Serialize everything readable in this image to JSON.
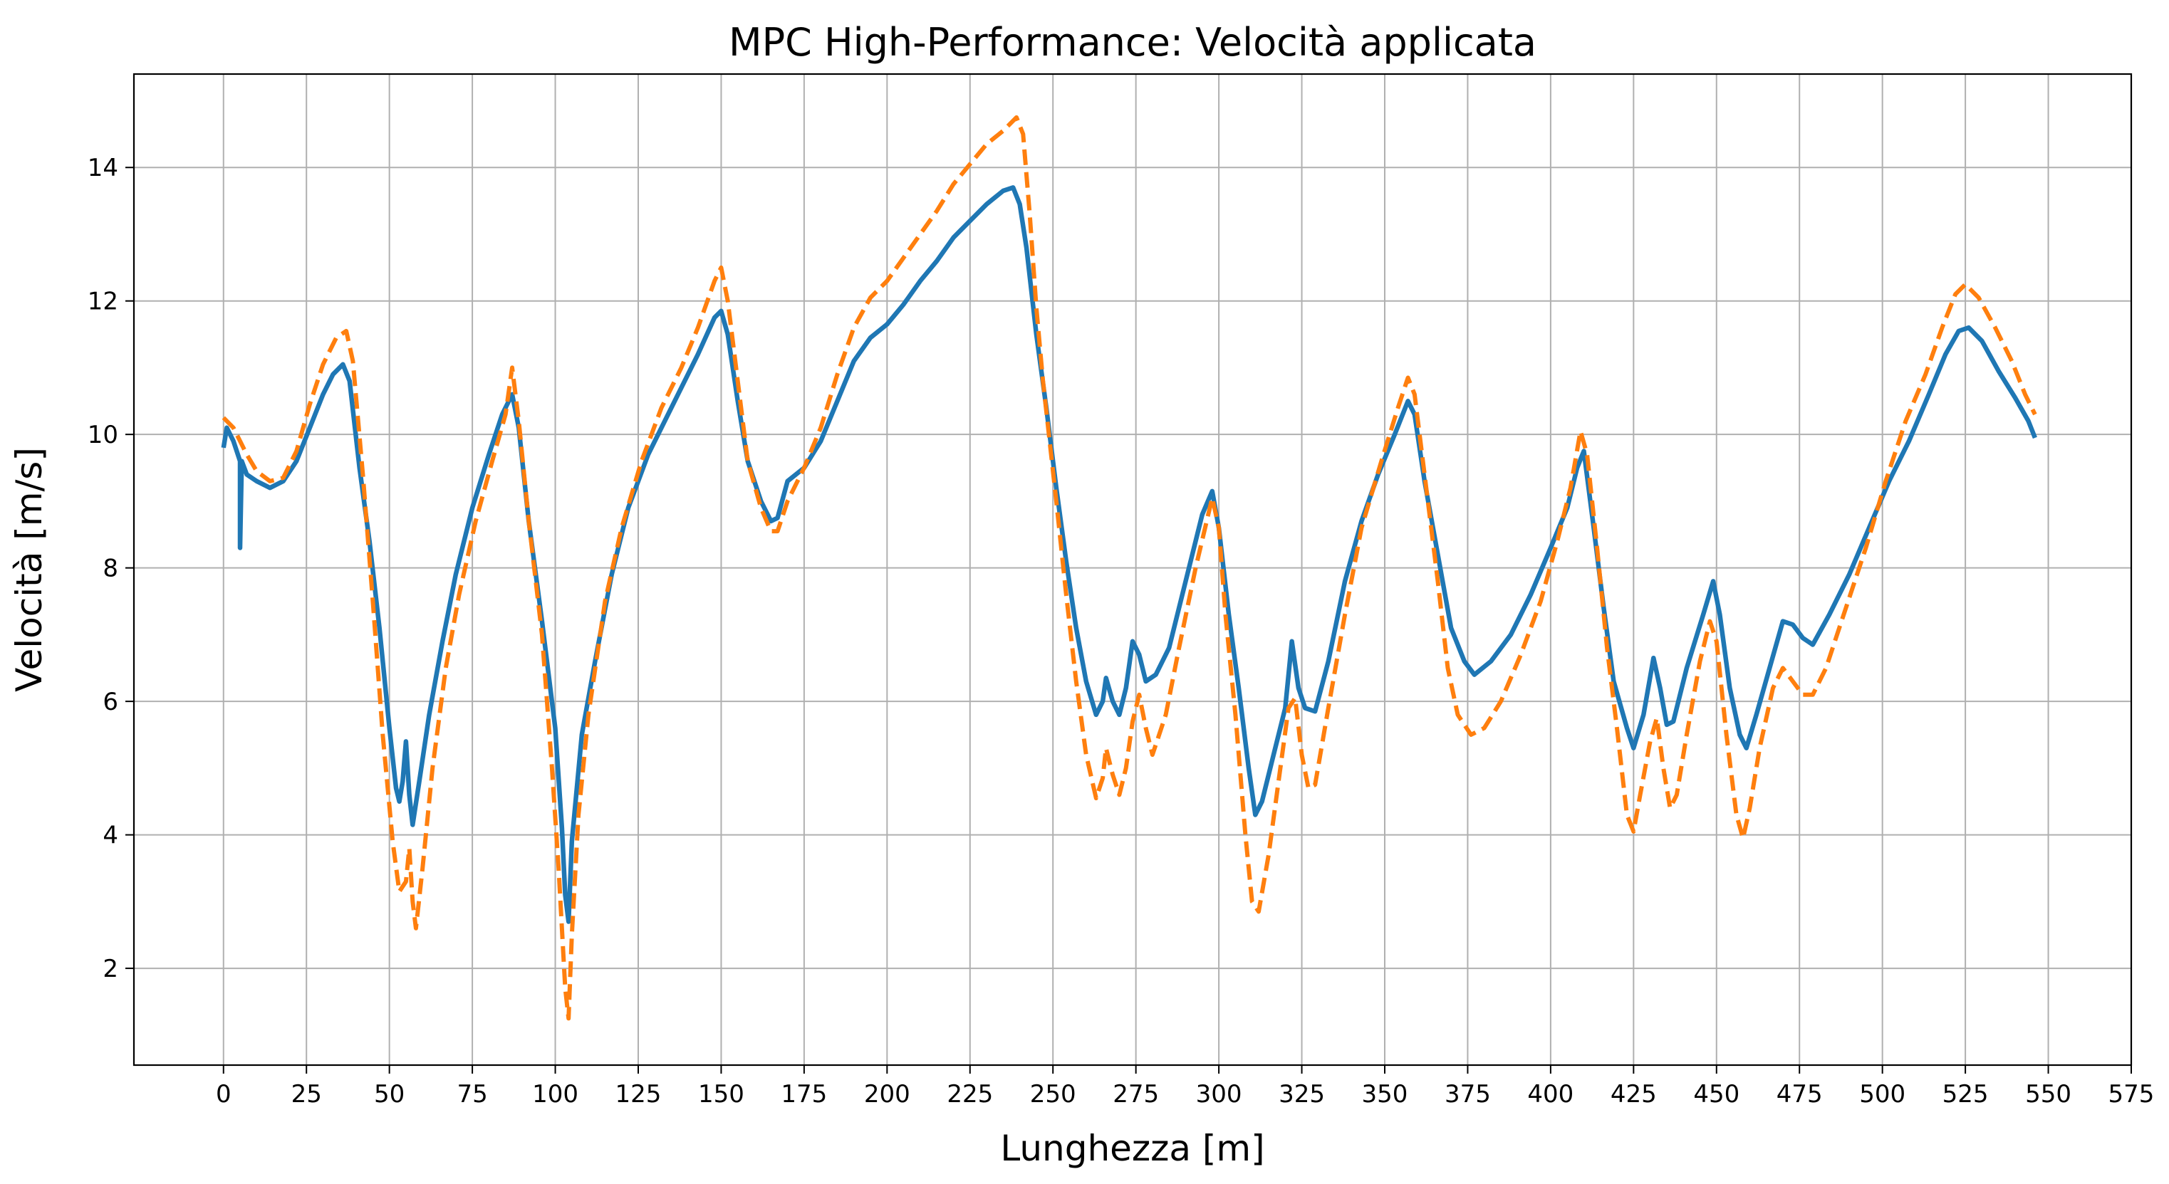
{
  "chart_data": {
    "type": "line",
    "title": "MPC High-Performance: Velocità applicata",
    "xlabel": "Lunghezza [m]",
    "ylabel": "Velocità [m/s]",
    "xlim": [
      -27,
      575
    ],
    "ylim": [
      0.55,
      15.4
    ],
    "xticks": [
      0,
      25,
      50,
      75,
      100,
      125,
      150,
      175,
      200,
      225,
      250,
      275,
      300,
      325,
      350,
      375,
      400,
      425,
      450,
      475,
      500,
      525,
      550,
      575
    ],
    "yticks": [
      2,
      4,
      6,
      8,
      10,
      12,
      14
    ],
    "grid": true,
    "series": [
      {
        "color": "#1f77b4",
        "style": "solid",
        "points": [
          [
            0,
            9.8
          ],
          [
            1,
            10.1
          ],
          [
            3,
            9.9
          ],
          [
            5,
            9.6
          ],
          [
            5,
            8.3
          ],
          [
            5.5,
            9.6
          ],
          [
            7,
            9.4
          ],
          [
            10,
            9.3
          ],
          [
            14,
            9.2
          ],
          [
            18,
            9.3
          ],
          [
            22,
            9.6
          ],
          [
            26,
            10.1
          ],
          [
            30,
            10.6
          ],
          [
            33,
            10.9
          ],
          [
            36,
            11.05
          ],
          [
            38,
            10.8
          ],
          [
            41,
            9.5
          ],
          [
            44,
            8.4
          ],
          [
            47,
            7.1
          ],
          [
            50,
            5.6
          ],
          [
            52,
            4.7
          ],
          [
            53,
            4.5
          ],
          [
            54,
            4.8
          ],
          [
            55,
            5.4
          ],
          [
            56,
            4.6
          ],
          [
            57,
            4.15
          ],
          [
            59,
            4.8
          ],
          [
            62,
            5.8
          ],
          [
            66,
            6.9
          ],
          [
            70,
            7.9
          ],
          [
            75,
            8.9
          ],
          [
            80,
            9.7
          ],
          [
            84,
            10.3
          ],
          [
            87,
            10.6
          ],
          [
            89,
            10.1
          ],
          [
            92,
            8.7
          ],
          [
            96,
            7.2
          ],
          [
            100,
            5.6
          ],
          [
            102,
            4.1
          ],
          [
            103,
            3.1
          ],
          [
            104,
            2.7
          ],
          [
            105,
            3.9
          ],
          [
            108,
            5.5
          ],
          [
            112,
            6.6
          ],
          [
            117,
            7.9
          ],
          [
            122,
            8.9
          ],
          [
            128,
            9.7
          ],
          [
            133,
            10.2
          ],
          [
            138,
            10.7
          ],
          [
            143,
            11.2
          ],
          [
            148,
            11.75
          ],
          [
            150,
            11.85
          ],
          [
            152,
            11.5
          ],
          [
            155,
            10.5
          ],
          [
            158,
            9.6
          ],
          [
            162,
            9.0
          ],
          [
            165,
            8.7
          ],
          [
            167,
            8.75
          ],
          [
            170,
            9.3
          ],
          [
            175,
            9.5
          ],
          [
            180,
            9.9
          ],
          [
            185,
            10.5
          ],
          [
            190,
            11.1
          ],
          [
            195,
            11.45
          ],
          [
            200,
            11.65
          ],
          [
            205,
            11.95
          ],
          [
            210,
            12.3
          ],
          [
            215,
            12.6
          ],
          [
            220,
            12.95
          ],
          [
            225,
            13.2
          ],
          [
            230,
            13.45
          ],
          [
            235,
            13.65
          ],
          [
            238,
            13.7
          ],
          [
            240,
            13.45
          ],
          [
            242,
            12.8
          ],
          [
            245,
            11.5
          ],
          [
            248,
            10.4
          ],
          [
            251,
            9.2
          ],
          [
            254,
            8.1
          ],
          [
            257,
            7.1
          ],
          [
            260,
            6.3
          ],
          [
            263,
            5.8
          ],
          [
            265,
            6.0
          ],
          [
            266,
            6.35
          ],
          [
            268,
            6.0
          ],
          [
            270,
            5.8
          ],
          [
            272,
            6.2
          ],
          [
            274,
            6.9
          ],
          [
            276,
            6.7
          ],
          [
            278,
            6.3
          ],
          [
            281,
            6.4
          ],
          [
            285,
            6.8
          ],
          [
            290,
            7.8
          ],
          [
            295,
            8.8
          ],
          [
            298,
            9.15
          ],
          [
            300,
            8.6
          ],
          [
            303,
            7.3
          ],
          [
            306,
            6.2
          ],
          [
            309,
            5.0
          ],
          [
            311,
            4.3
          ],
          [
            313,
            4.5
          ],
          [
            316,
            5.1
          ],
          [
            320,
            5.9
          ],
          [
            322,
            6.9
          ],
          [
            324,
            6.2
          ],
          [
            326,
            5.9
          ],
          [
            329,
            5.85
          ],
          [
            333,
            6.6
          ],
          [
            338,
            7.8
          ],
          [
            343,
            8.7
          ],
          [
            348,
            9.4
          ],
          [
            353,
            10.0
          ],
          [
            357,
            10.5
          ],
          [
            359,
            10.3
          ],
          [
            362,
            9.3
          ],
          [
            366,
            8.2
          ],
          [
            370,
            7.1
          ],
          [
            374,
            6.6
          ],
          [
            377,
            6.4
          ],
          [
            382,
            6.6
          ],
          [
            388,
            7.0
          ],
          [
            394,
            7.6
          ],
          [
            400,
            8.3
          ],
          [
            405,
            8.9
          ],
          [
            408,
            9.5
          ],
          [
            410,
            9.75
          ],
          [
            413,
            8.6
          ],
          [
            416,
            7.4
          ],
          [
            419,
            6.3
          ],
          [
            423,
            5.6
          ],
          [
            425,
            5.3
          ],
          [
            428,
            5.8
          ],
          [
            431,
            6.65
          ],
          [
            433,
            6.2
          ],
          [
            435,
            5.65
          ],
          [
            437,
            5.7
          ],
          [
            441,
            6.5
          ],
          [
            446,
            7.3
          ],
          [
            449,
            7.8
          ],
          [
            451,
            7.3
          ],
          [
            454,
            6.2
          ],
          [
            457,
            5.5
          ],
          [
            459,
            5.3
          ],
          [
            462,
            5.8
          ],
          [
            466,
            6.5
          ],
          [
            470,
            7.2
          ],
          [
            473,
            7.15
          ],
          [
            476,
            6.95
          ],
          [
            479,
            6.85
          ],
          [
            484,
            7.3
          ],
          [
            490,
            7.9
          ],
          [
            496,
            8.6
          ],
          [
            502,
            9.3
          ],
          [
            508,
            9.9
          ],
          [
            514,
            10.6
          ],
          [
            519,
            11.2
          ],
          [
            523,
            11.55
          ],
          [
            526,
            11.6
          ],
          [
            530,
            11.4
          ],
          [
            535,
            10.95
          ],
          [
            540,
            10.55
          ],
          [
            544,
            10.2
          ],
          [
            546,
            9.95
          ]
        ]
      },
      {
        "color": "#ff7f0e",
        "style": "dashed",
        "points": [
          [
            0,
            10.25
          ],
          [
            3,
            10.1
          ],
          [
            7,
            9.7
          ],
          [
            10,
            9.45
          ],
          [
            14,
            9.3
          ],
          [
            18,
            9.35
          ],
          [
            22,
            9.75
          ],
          [
            26,
            10.45
          ],
          [
            30,
            11.05
          ],
          [
            34,
            11.45
          ],
          [
            37,
            11.55
          ],
          [
            39,
            11.1
          ],
          [
            42,
            9.4
          ],
          [
            45,
            7.5
          ],
          [
            48,
            5.5
          ],
          [
            51,
            3.9
          ],
          [
            53,
            3.15
          ],
          [
            55,
            3.3
          ],
          [
            56,
            3.8
          ],
          [
            57,
            3.0
          ],
          [
            58,
            2.6
          ],
          [
            60,
            3.5
          ],
          [
            63,
            5.0
          ],
          [
            67,
            6.5
          ],
          [
            71,
            7.6
          ],
          [
            76,
            8.7
          ],
          [
            81,
            9.6
          ],
          [
            85,
            10.3
          ],
          [
            87,
            11.0
          ],
          [
            89,
            10.2
          ],
          [
            92,
            8.7
          ],
          [
            96,
            7.0
          ],
          [
            99,
            5.0
          ],
          [
            101,
            3.5
          ],
          [
            103,
            1.7
          ],
          [
            104,
            1.25
          ],
          [
            105,
            2.5
          ],
          [
            107,
            4.3
          ],
          [
            110,
            5.8
          ],
          [
            115,
            7.5
          ],
          [
            120,
            8.6
          ],
          [
            126,
            9.6
          ],
          [
            132,
            10.4
          ],
          [
            138,
            11.0
          ],
          [
            143,
            11.6
          ],
          [
            148,
            12.3
          ],
          [
            150,
            12.5
          ],
          [
            152,
            12.0
          ],
          [
            155,
            10.8
          ],
          [
            158,
            9.6
          ],
          [
            162,
            8.9
          ],
          [
            165,
            8.55
          ],
          [
            167,
            8.55
          ],
          [
            170,
            9.0
          ],
          [
            175,
            9.5
          ],
          [
            180,
            10.1
          ],
          [
            185,
            10.9
          ],
          [
            190,
            11.6
          ],
          [
            195,
            12.05
          ],
          [
            200,
            12.3
          ],
          [
            205,
            12.65
          ],
          [
            210,
            13.0
          ],
          [
            215,
            13.35
          ],
          [
            220,
            13.75
          ],
          [
            225,
            14.05
          ],
          [
            230,
            14.35
          ],
          [
            235,
            14.55
          ],
          [
            239,
            14.75
          ],
          [
            241,
            14.5
          ],
          [
            243,
            13.3
          ],
          [
            245,
            11.9
          ],
          [
            247,
            10.8
          ],
          [
            251,
            9.0
          ],
          [
            254,
            7.6
          ],
          [
            257,
            6.3
          ],
          [
            260,
            5.2
          ],
          [
            263,
            4.55
          ],
          [
            265,
            4.85
          ],
          [
            266,
            5.3
          ],
          [
            268,
            4.9
          ],
          [
            270,
            4.6
          ],
          [
            272,
            5.0
          ],
          [
            274,
            5.7
          ],
          [
            276,
            6.1
          ],
          [
            278,
            5.6
          ],
          [
            280,
            5.2
          ],
          [
            284,
            5.8
          ],
          [
            288,
            6.8
          ],
          [
            293,
            8.0
          ],
          [
            298,
            9.05
          ],
          [
            300,
            8.6
          ],
          [
            302,
            7.3
          ],
          [
            305,
            5.8
          ],
          [
            308,
            4.0
          ],
          [
            310,
            3.0
          ],
          [
            312,
            2.85
          ],
          [
            315,
            3.7
          ],
          [
            318,
            4.8
          ],
          [
            321,
            5.9
          ],
          [
            323,
            6.05
          ],
          [
            325,
            5.2
          ],
          [
            327,
            4.7
          ],
          [
            329,
            4.75
          ],
          [
            333,
            5.9
          ],
          [
            338,
            7.3
          ],
          [
            343,
            8.6
          ],
          [
            349,
            9.6
          ],
          [
            354,
            10.4
          ],
          [
            357,
            10.85
          ],
          [
            359,
            10.6
          ],
          [
            362,
            9.4
          ],
          [
            366,
            7.8
          ],
          [
            369,
            6.5
          ],
          [
            372,
            5.8
          ],
          [
            376,
            5.5
          ],
          [
            380,
            5.6
          ],
          [
            385,
            6.0
          ],
          [
            391,
            6.7
          ],
          [
            397,
            7.5
          ],
          [
            402,
            8.4
          ],
          [
            406,
            9.2
          ],
          [
            409,
            10.05
          ],
          [
            411,
            9.7
          ],
          [
            414,
            8.3
          ],
          [
            417,
            6.8
          ],
          [
            420,
            5.6
          ],
          [
            423,
            4.3
          ],
          [
            425,
            4.05
          ],
          [
            427,
            4.6
          ],
          [
            430,
            5.4
          ],
          [
            432,
            5.75
          ],
          [
            434,
            5.0
          ],
          [
            436,
            4.4
          ],
          [
            438,
            4.6
          ],
          [
            441,
            5.5
          ],
          [
            445,
            6.6
          ],
          [
            448,
            7.2
          ],
          [
            450,
            6.9
          ],
          [
            453,
            5.5
          ],
          [
            456,
            4.3
          ],
          [
            458,
            3.95
          ],
          [
            460,
            4.4
          ],
          [
            463,
            5.3
          ],
          [
            467,
            6.2
          ],
          [
            470,
            6.5
          ],
          [
            473,
            6.3
          ],
          [
            476,
            6.1
          ],
          [
            479,
            6.1
          ],
          [
            483,
            6.5
          ],
          [
            489,
            7.4
          ],
          [
            495,
            8.3
          ],
          [
            501,
            9.3
          ],
          [
            507,
            10.2
          ],
          [
            513,
            10.9
          ],
          [
            518,
            11.6
          ],
          [
            522,
            12.1
          ],
          [
            525,
            12.25
          ],
          [
            529,
            12.05
          ],
          [
            534,
            11.6
          ],
          [
            539,
            11.1
          ],
          [
            543,
            10.6
          ],
          [
            546,
            10.3
          ]
        ]
      }
    ]
  }
}
